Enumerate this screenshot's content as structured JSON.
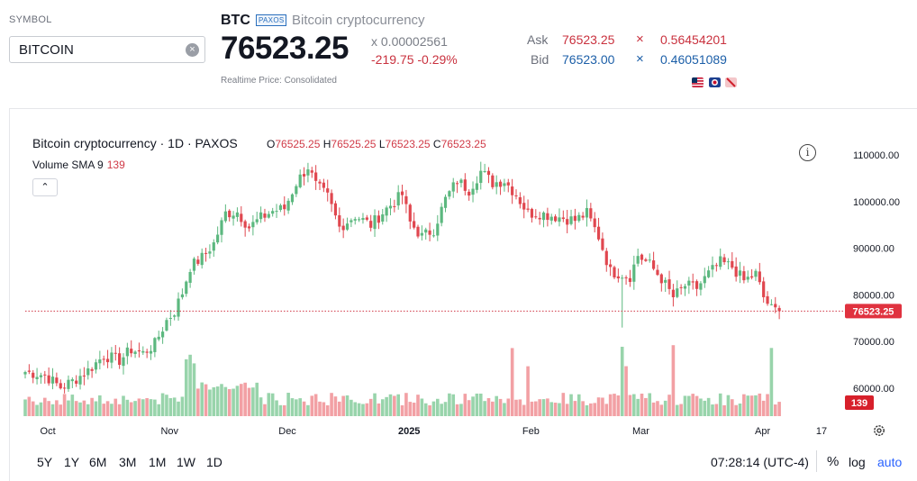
{
  "symbol_panel": {
    "label": "SYMBOL",
    "search_value": "BITCOIN",
    "clear_glyph": "×"
  },
  "quote": {
    "ticker": "BTC",
    "exchange": "PAXOS",
    "description": "Bitcoin cryptocurrency",
    "last_price": "76523.25",
    "volume_multiplier": "x 0.00002561",
    "change": "-219.75 -0.29%",
    "realtime_note": "Realtime Price: Consolidated",
    "ask_label": "Ask",
    "ask_price": "76523.25",
    "ask_size": "0.56454201",
    "bid_label": "Bid",
    "bid_price": "76523.00",
    "bid_size": "0.46051089",
    "size_separator": "×"
  },
  "flags": [
    "us-flag-icon",
    "clock-badge-icon",
    "pencil-badge-icon"
  ],
  "chart_header": {
    "title": "Bitcoin cryptocurrency · 1D · PAXOS",
    "o_label": "O",
    "o_value": "76525.25",
    "h_label": "H",
    "h_value": "76525.25",
    "l_label": "L",
    "l_value": "76523.25",
    "c_label": "C",
    "c_value": "76523.25",
    "volume_label": "Volume SMA 9",
    "volume_value": "139",
    "collapse_glyph": "⌃",
    "info_glyph": "i"
  },
  "colors": {
    "up": "#5cb87f",
    "down": "#e0474f",
    "vol_up": "#98d4ab",
    "vol_down": "#f2a0a4",
    "price_line": "#d03a47",
    "price_tag": "#e0323f",
    "vol_tag": "#d7202b"
  },
  "bottom_bar": {
    "ranges": [
      "5Y",
      "1Y",
      "6M",
      "3M",
      "1M",
      "1W",
      "1D"
    ],
    "clock": "07:28:14 (UTC-4)",
    "percent": "%",
    "log": "log",
    "auto": "auto"
  },
  "chart_data": {
    "type": "candlestick",
    "title": "Bitcoin cryptocurrency · 1D · PAXOS",
    "y_ticks": [
      110000,
      100000,
      90000,
      80000,
      70000,
      60000
    ],
    "y_tick_labels": [
      "110000.00",
      "100000.00",
      "90000.00",
      "80000.00",
      "70000.00",
      "60000.00"
    ],
    "ylim": [
      54000,
      113000
    ],
    "x_tick_labels": [
      "Oct",
      "Nov",
      "Dec",
      "2025",
      "Feb",
      "Mar",
      "Apr",
      "17"
    ],
    "x_tick_day_index": [
      3,
      34,
      64,
      95,
      126,
      154,
      185,
      200
    ],
    "last_price_label": "76523.25",
    "last_price": 76523.25,
    "volume_sma_label": "139",
    "close_anchors": [
      [
        0,
        63500
      ],
      [
        5,
        62800
      ],
      [
        9,
        60200
      ],
      [
        12,
        61500
      ],
      [
        16,
        63800
      ],
      [
        20,
        67000
      ],
      [
        24,
        66000
      ],
      [
        27,
        68300
      ],
      [
        30,
        67500
      ],
      [
        33,
        69500
      ],
      [
        36,
        74500
      ],
      [
        38,
        76500
      ],
      [
        40,
        80500
      ],
      [
        42,
        86000
      ],
      [
        45,
        88000
      ],
      [
        48,
        91000
      ],
      [
        51,
        97500
      ],
      [
        54,
        97800
      ],
      [
        57,
        94500
      ],
      [
        60,
        96500
      ],
      [
        63,
        98000
      ],
      [
        66,
        98500
      ],
      [
        69,
        104000
      ],
      [
        72,
        107500
      ],
      [
        74,
        103500
      ],
      [
        77,
        101000
      ],
      [
        80,
        94500
      ],
      [
        84,
        97000
      ],
      [
        88,
        95000
      ],
      [
        92,
        98500
      ],
      [
        96,
        101500
      ],
      [
        98,
        95500
      ],
      [
        101,
        92500
      ],
      [
        104,
        94000
      ],
      [
        107,
        100500
      ],
      [
        110,
        104500
      ],
      [
        113,
        102500
      ],
      [
        116,
        106500
      ],
      [
        119,
        104000
      ],
      [
        122,
        104500
      ],
      [
        125,
        101500
      ],
      [
        128,
        97500
      ],
      [
        131,
        97500
      ],
      [
        134,
        97000
      ],
      [
        137,
        96500
      ],
      [
        140,
        96000
      ],
      [
        143,
        97500
      ],
      [
        146,
        92500
      ],
      [
        149,
        85000
      ],
      [
        152,
        84500
      ],
      [
        154,
        84000
      ],
      [
        156,
        88500
      ],
      [
        159,
        86500
      ],
      [
        162,
        83500
      ],
      [
        165,
        79500
      ],
      [
        168,
        82000
      ],
      [
        171,
        81500
      ],
      [
        174,
        84500
      ],
      [
        177,
        87000
      ],
      [
        180,
        86000
      ],
      [
        183,
        83000
      ],
      [
        186,
        84500
      ],
      [
        188,
        79500
      ],
      [
        190,
        77000
      ],
      [
        192,
        76523
      ]
    ],
    "volume_spike_day_index": [
      41,
      42,
      43,
      124,
      128,
      152,
      153,
      165,
      190
    ],
    "volume_units": "relative"
  }
}
